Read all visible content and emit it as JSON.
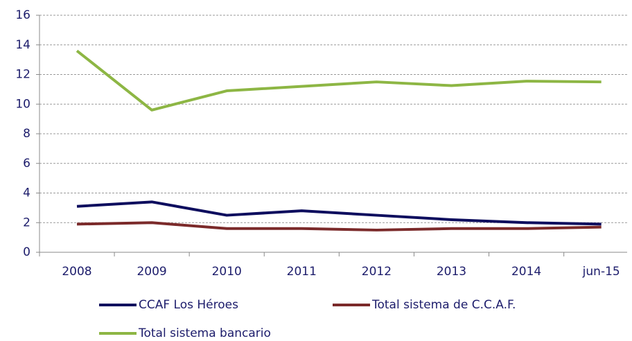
{
  "chart_data": {
    "type": "line",
    "categories": [
      "2008",
      "2009",
      "2010",
      "2011",
      "2012",
      "2013",
      "2014",
      "jun-15"
    ],
    "series": [
      {
        "name": "CCAF Los Héroes",
        "color": "#0d0d5e",
        "values": [
          3.1,
          3.4,
          2.5,
          2.8,
          2.5,
          2.2,
          2.0,
          1.9
        ]
      },
      {
        "name": "Total sistema de C.C.A.F.",
        "color": "#7b2a2a",
        "values": [
          1.9,
          2.0,
          1.6,
          1.6,
          1.5,
          1.6,
          1.6,
          1.7
        ]
      },
      {
        "name": "Total sistema bancario",
        "color": "#8db644",
        "values": [
          13.6,
          9.6,
          10.9,
          11.2,
          11.5,
          11.25,
          11.55,
          11.5
        ]
      }
    ],
    "ylim": [
      0,
      16
    ],
    "yticks": [
      0,
      2,
      4,
      6,
      8,
      10,
      12,
      14,
      16
    ],
    "grid": true
  }
}
